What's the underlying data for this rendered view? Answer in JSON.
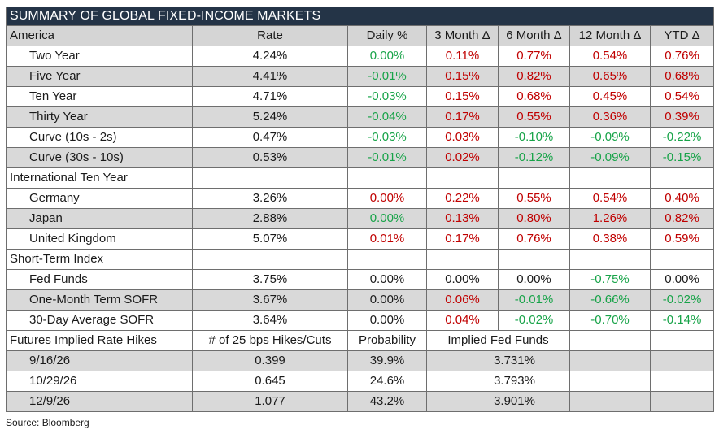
{
  "title": "SUMMARY OF GLOBAL FIXED-INCOME MARKETS",
  "columns": [
    "America",
    "Rate",
    "Daily %",
    "3 Month Δ",
    "6 Month Δ",
    "12 Month Δ",
    "YTD Δ"
  ],
  "colors": {
    "header_bg": "#243447",
    "positive": "#c00000",
    "negative": "#17a348",
    "shade": "#d9d9d9"
  },
  "america": [
    {
      "label": "Two Year",
      "rate": "4.24%",
      "daily": "0.00%",
      "m3": "0.11%",
      "m6": "0.77%",
      "m12": "0.54%",
      "ytd": "0.76%"
    },
    {
      "label": "Five Year",
      "rate": "4.41%",
      "daily": "-0.01%",
      "m3": "0.15%",
      "m6": "0.82%",
      "m12": "0.65%",
      "ytd": "0.68%"
    },
    {
      "label": "Ten Year",
      "rate": "4.71%",
      "daily": "-0.03%",
      "m3": "0.15%",
      "m6": "0.68%",
      "m12": "0.45%",
      "ytd": "0.54%"
    },
    {
      "label": "Thirty Year",
      "rate": "5.24%",
      "daily": "-0.04%",
      "m3": "0.17%",
      "m6": "0.55%",
      "m12": "0.36%",
      "ytd": "0.39%"
    },
    {
      "label": "Curve (10s - 2s)",
      "rate": "0.47%",
      "daily": "-0.03%",
      "m3": "0.03%",
      "m6": "-0.10%",
      "m12": "-0.09%",
      "ytd": "-0.22%"
    },
    {
      "label": "Curve (30s - 10s)",
      "rate": "0.53%",
      "daily": "-0.01%",
      "m3": "0.02%",
      "m6": "-0.12%",
      "m12": "-0.09%",
      "ytd": "-0.15%"
    }
  ],
  "international_label": "International Ten Year",
  "international": [
    {
      "label": "Germany",
      "rate": "3.26%",
      "daily": "0.00%",
      "m3": "0.22%",
      "m6": "0.55%",
      "m12": "0.54%",
      "ytd": "0.40%"
    },
    {
      "label": "Japan",
      "rate": "2.88%",
      "daily": "0.00%",
      "m3": "0.13%",
      "m6": "0.80%",
      "m12": "1.26%",
      "ytd": "0.82%"
    },
    {
      "label": "United Kingdom",
      "rate": "5.07%",
      "daily": "0.01%",
      "m3": "0.17%",
      "m6": "0.76%",
      "m12": "0.38%",
      "ytd": "0.59%"
    }
  ],
  "short_term_label": "Short-Term Index",
  "short_term": [
    {
      "label": "Fed Funds",
      "rate": "3.75%",
      "daily": "0.00%",
      "m3": "0.00%",
      "m6": "0.00%",
      "m12": "-0.75%",
      "ytd": "0.00%"
    },
    {
      "label": "One-Month Term SOFR",
      "rate": "3.67%",
      "daily": "0.00%",
      "m3": "0.06%",
      "m6": "-0.01%",
      "m12": "-0.66%",
      "ytd": "-0.02%"
    },
    {
      "label": "30-Day Average SOFR",
      "rate": "3.64%",
      "daily": "0.00%",
      "m3": "0.04%",
      "m6": "-0.02%",
      "m12": "-0.70%",
      "ytd": "-0.14%"
    }
  ],
  "futures_header": {
    "label": "Futures Implied Rate Hikes",
    "hikes": "# of 25 bps Hikes/Cuts",
    "prob": "Probability",
    "implied": "Implied Fed Funds"
  },
  "futures": [
    {
      "date": "9/16/26",
      "hikes": "0.399",
      "prob": "39.9%",
      "implied": "3.731%"
    },
    {
      "date": "10/29/26",
      "hikes": "0.645",
      "prob": "24.6%",
      "implied": "3.793%"
    },
    {
      "date": "12/9/26",
      "hikes": "1.077",
      "prob": "43.2%",
      "implied": "3.901%"
    }
  ],
  "source": "Source: Bloomberg"
}
